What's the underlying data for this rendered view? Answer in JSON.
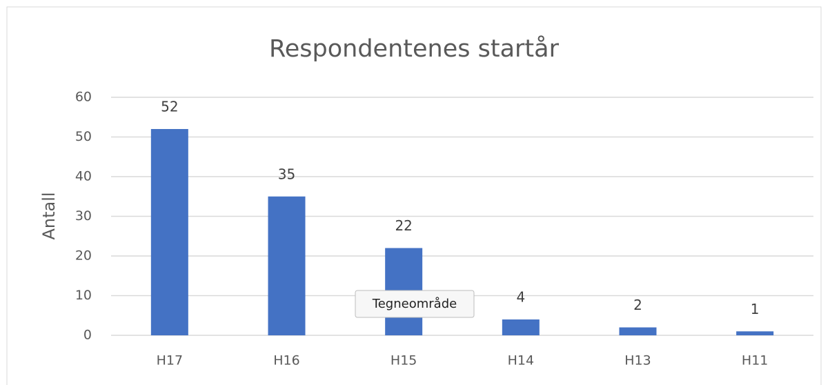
{
  "chart_data": {
    "type": "bar",
    "title": "Respondentenes startår",
    "ylabel": "Antall",
    "categories": [
      "H17",
      "H16",
      "H15",
      "H14",
      "H13",
      "H11"
    ],
    "values": [
      52,
      35,
      22,
      4,
      2,
      1
    ],
    "color": "#4472c4",
    "ylim": [
      0,
      60
    ],
    "yticks": [
      0,
      10,
      20,
      30,
      40,
      50,
      60
    ],
    "grid": true,
    "tooltip": "Tegneområde"
  }
}
